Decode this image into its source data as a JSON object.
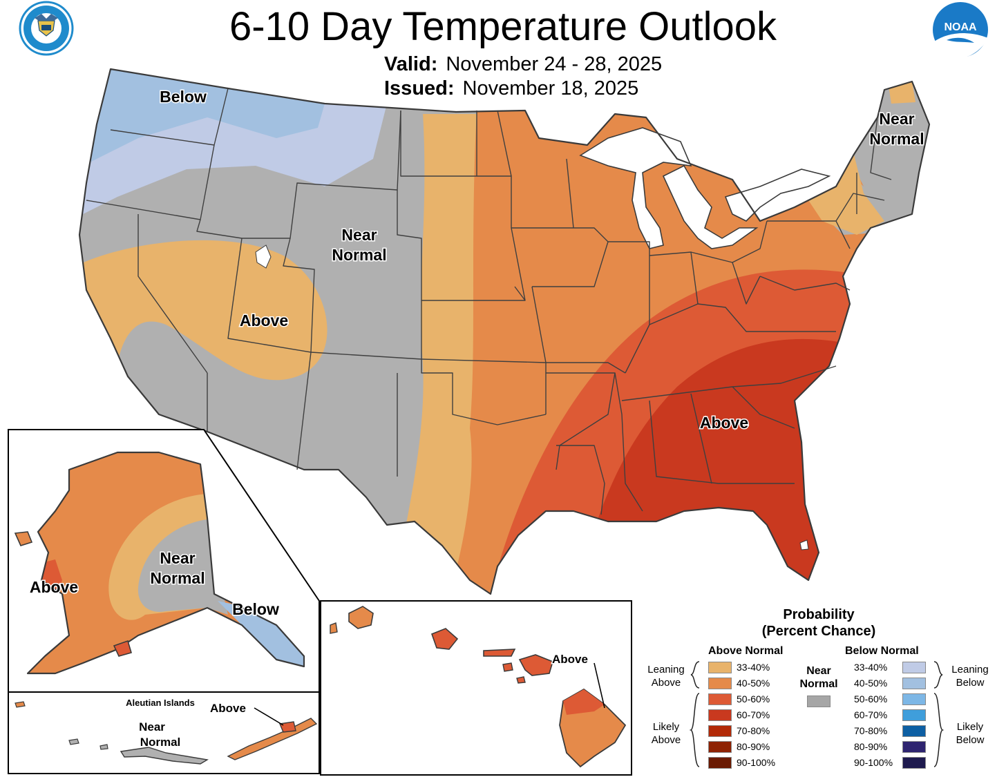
{
  "title": "6-10 Day Temperature Outlook",
  "valid_label": "Valid:",
  "valid_dates": "November 24 - 28, 2025",
  "issued_label": "Issued:",
  "issued_date": "November 18, 2025",
  "regions": {
    "northwest": "Below",
    "central_top": "Near",
    "central_bottom": "Normal",
    "southwest": "Above",
    "northeast_top": "Near",
    "northeast_bottom": "Normal",
    "southeast": "Above",
    "alaska_west": "Above",
    "alaska_center_top": "Near",
    "alaska_center_bottom": "Normal",
    "alaska_southeast": "Below",
    "aleutian_title": "Aleutian Islands",
    "aleutian_above": "Above",
    "aleutian_near_top": "Near",
    "aleutian_near_bottom": "Normal",
    "hawaii": "Above"
  },
  "legend": {
    "title_line1": "Probability",
    "title_line2": "(Percent Chance)",
    "above_header": "Above Normal",
    "below_header": "Below Normal",
    "near_line1": "Near",
    "near_line2": "Normal",
    "near_color": "#a6a6a6",
    "leaning_above_line1": "Leaning",
    "leaning_above_line2": "Above",
    "likely_above_line1": "Likely",
    "likely_above_line2": "Above",
    "leaning_below_line1": "Leaning",
    "leaning_below_line2": "Below",
    "likely_below_line1": "Likely",
    "likely_below_line2": "Below",
    "above": [
      {
        "label": "33-40%",
        "color": "#e8b36b"
      },
      {
        "label": "40-50%",
        "color": "#e58a4a"
      },
      {
        "label": "50-60%",
        "color": "#dd5a35"
      },
      {
        "label": "60-70%",
        "color": "#c9391f"
      },
      {
        "label": "70-80%",
        "color": "#b22a08"
      },
      {
        "label": "80-90%",
        "color": "#8e2203"
      },
      {
        "label": "90-100%",
        "color": "#6a1a02"
      }
    ],
    "below": [
      {
        "label": "33-40%",
        "color": "#c0cbe6"
      },
      {
        "label": "40-50%",
        "color": "#a2c0e0"
      },
      {
        "label": "50-60%",
        "color": "#7db7e6"
      },
      {
        "label": "60-70%",
        "color": "#3f9edb"
      },
      {
        "label": "70-80%",
        "color": "#0d5fa3"
      },
      {
        "label": "80-90%",
        "color": "#2e2470"
      },
      {
        "label": "90-100%",
        "color": "#1e1a4e"
      }
    ]
  },
  "logos": {
    "left_seal": "department-of-commerce-seal",
    "right_logo": "noaa-logo",
    "noaa_text": "NOAA"
  }
}
